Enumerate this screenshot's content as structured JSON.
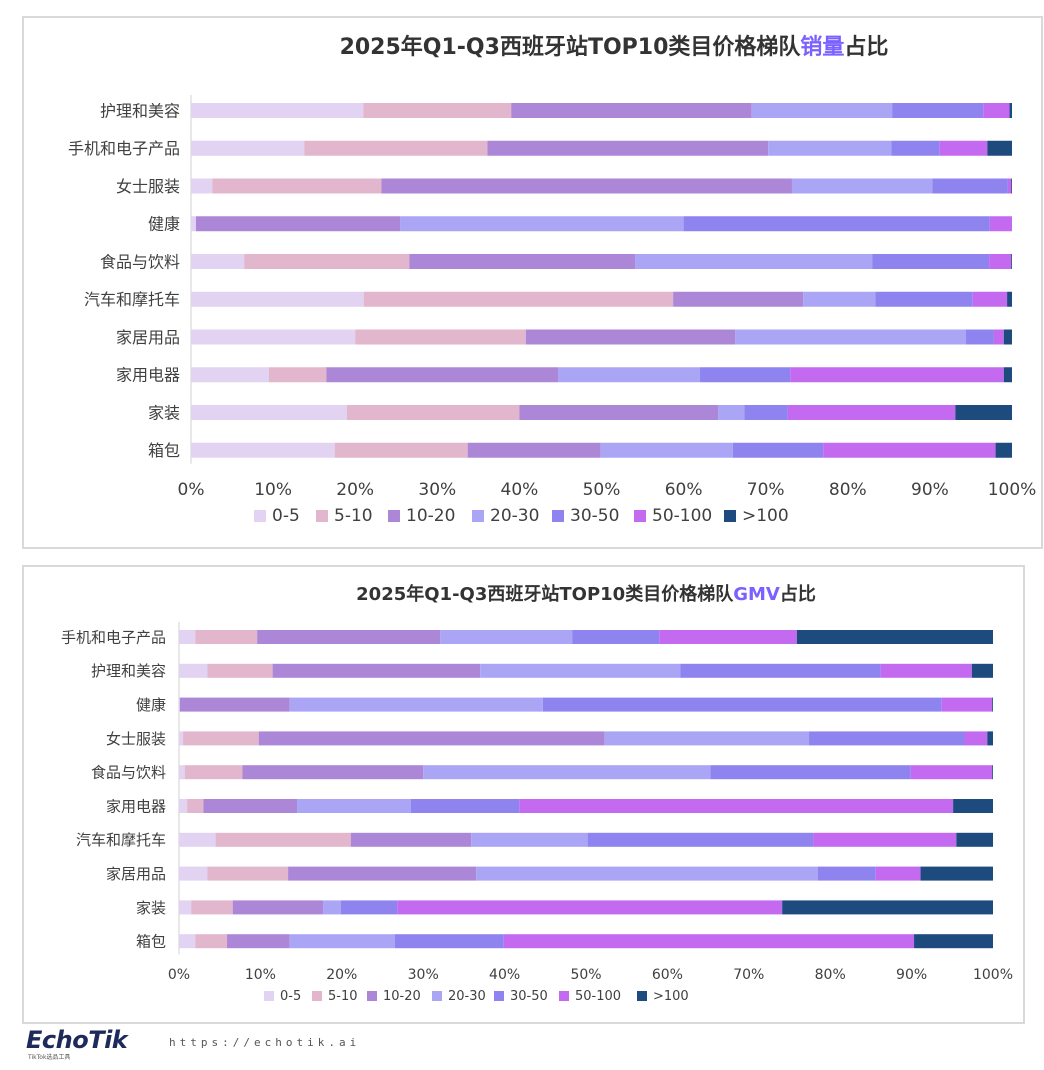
{
  "colors": {
    "0-5": "#e2d3f2",
    "5-10": "#e2b6cc",
    "10-20": "#ad87d7",
    "20-30": "#aba5f6",
    "30-50": "#8f84ef",
    "50-100": "#c46af1",
    ">100": "#1e4b7e",
    "accent": "#7b61ff",
    "title": "#333333"
  },
  "footer": {
    "logo": "EchoTik",
    "logo_sub": "TikTok选品工具",
    "url": "https://echotik.ai"
  },
  "chart_data": [
    {
      "type": "bar",
      "orientation": "horizontal",
      "stacked": "100%",
      "title_prefix": "2025年Q1-Q3西班牙站TOP10类目价格梯队",
      "title_highlight": "销量",
      "title_suffix": "占比",
      "xlim": [
        0,
        100
      ],
      "xticks": [
        "0%",
        "10%",
        "20%",
        "30%",
        "40%",
        "50%",
        "60%",
        "70%",
        "80%",
        "90%",
        "100%"
      ],
      "legend_position": "bottom",
      "categories": [
        "护理和美容",
        "手机和电子产品",
        "女士服装",
        "健康",
        "食品与饮料",
        "汽车和摩托车",
        "家居用品",
        "家用电器",
        "家装",
        "箱包"
      ],
      "series": [
        {
          "name": "0-5",
          "values": [
            21.0,
            13.8,
            2.6,
            0.6,
            6.5,
            21.1,
            20.0,
            9.5,
            19.0,
            17.5
          ]
        },
        {
          "name": "5-10",
          "values": [
            18.0,
            22.3,
            20.6,
            0.0,
            20.2,
            37.8,
            20.8,
            7.0,
            21.0,
            16.2
          ]
        },
        {
          "name": "10-20",
          "values": [
            29.3,
            34.2,
            50.0,
            24.9,
            27.6,
            15.9,
            25.5,
            28.2,
            24.2,
            16.2
          ]
        },
        {
          "name": "20-30",
          "values": [
            17.1,
            15.0,
            17.1,
            34.5,
            29.0,
            8.8,
            28.1,
            17.3,
            3.2,
            16.1
          ]
        },
        {
          "name": "30-50",
          "values": [
            11.1,
            5.9,
            9.2,
            37.3,
            14.3,
            11.9,
            3.4,
            11.0,
            5.3,
            11.0
          ]
        },
        {
          "name": "50-100",
          "values": [
            3.2,
            5.8,
            0.4,
            2.7,
            2.7,
            4.2,
            1.2,
            26.0,
            20.4,
            21.0
          ]
        },
        {
          ">100": true,
          "name": ">100",
          "values": [
            0.3,
            3.0,
            0.1,
            0.0,
            0.1,
            0.6,
            1.0,
            1.0,
            6.9,
            2.0
          ]
        }
      ]
    },
    {
      "type": "bar",
      "orientation": "horizontal",
      "stacked": "100%",
      "title_prefix": "2025年Q1-Q3西班牙站TOP10类目价格梯队",
      "title_highlight": "GMV",
      "title_suffix": "占比",
      "xlim": [
        0,
        100
      ],
      "xticks": [
        "0%",
        "10%",
        "20%",
        "30%",
        "40%",
        "50%",
        "60%",
        "70%",
        "80%",
        "90%",
        "100%"
      ],
      "legend_position": "bottom",
      "categories": [
        "手机和电子产品",
        "护理和美容",
        "健康",
        "女士服装",
        "食品与饮料",
        "家用电器",
        "汽车和摩托车",
        "家居用品",
        "家装",
        "箱包"
      ],
      "series": [
        {
          "name": "0-5",
          "values": [
            2.0,
            3.5,
            0.1,
            0.5,
            0.7,
            1.0,
            4.5,
            3.5,
            1.5,
            2.0
          ]
        },
        {
          "name": "5-10",
          "values": [
            7.6,
            8.0,
            0.0,
            9.3,
            7.1,
            2.0,
            16.6,
            9.9,
            5.1,
            3.9
          ]
        },
        {
          "name": "10-20",
          "values": [
            22.5,
            25.5,
            13.5,
            42.5,
            22.2,
            11.5,
            14.8,
            23.1,
            11.1,
            7.7
          ]
        },
        {
          "name": "20-30",
          "values": [
            16.2,
            24.6,
            31.1,
            25.1,
            35.3,
            14.0,
            14.3,
            42.0,
            2.2,
            12.9
          ]
        },
        {
          "name": "30-50",
          "values": [
            10.7,
            24.6,
            49.0,
            19.1,
            24.6,
            13.3,
            27.7,
            7.1,
            6.9,
            13.4
          ]
        },
        {
          "name": "50-100",
          "values": [
            16.9,
            11.2,
            6.2,
            2.8,
            10.0,
            53.3,
            17.6,
            5.5,
            47.3,
            50.4
          ]
        },
        {
          "name": ">100",
          "values": [
            24.1,
            2.6,
            0.1,
            0.7,
            0.1,
            4.9,
            4.5,
            8.9,
            25.9,
            9.7
          ]
        }
      ]
    }
  ]
}
